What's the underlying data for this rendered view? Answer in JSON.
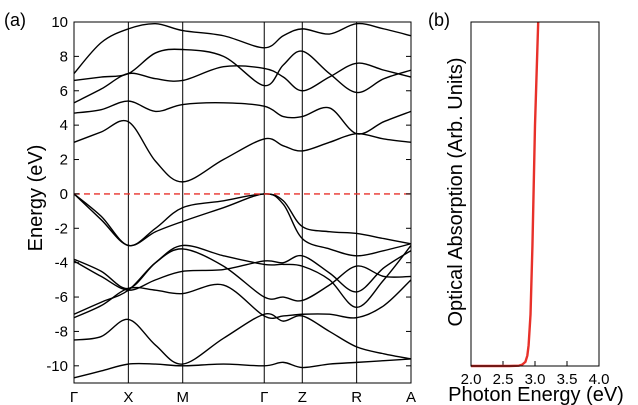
{
  "chart_data": [
    {
      "panel_label": "(a)",
      "type": "line",
      "title": "",
      "xlabel": "",
      "ylabel": "Energy (eV)",
      "ylim": [
        -11,
        10
      ],
      "y_ticks": [
        -10,
        -8,
        -6,
        -4,
        -2,
        0,
        2,
        4,
        6,
        8,
        10
      ],
      "k_points": [
        "Γ",
        "X",
        "M",
        "Γ",
        "Z",
        "R",
        "A"
      ],
      "k_positions": [
        0,
        1,
        2,
        3.5,
        4.2,
        5.2,
        6.2
      ],
      "fermi_level": 0,
      "fermi_color": "#e8312a",
      "band_color": "#000000",
      "series": [
        {
          "x": [
            0,
            0.5,
            1,
            1.5,
            2,
            2.75,
            3.5,
            3.85,
            4.2,
            4.7,
            5.2,
            5.7,
            6.2
          ],
          "y": [
            -10.7,
            -10.3,
            -9.9,
            -9.9,
            -10,
            -9.9,
            -10,
            -9.8,
            -10.1,
            -9.9,
            -9.8,
            -9.7,
            -9.6
          ]
        },
        {
          "x": [
            0,
            0.5,
            1,
            1.5,
            2,
            2.75,
            3.5,
            3.85,
            4.2,
            4.7,
            5.2,
            5.7,
            6.2
          ],
          "y": [
            -8.5,
            -8.3,
            -7.3,
            -8.8,
            -9.9,
            -8.4,
            -7,
            -7.4,
            -7.1,
            -8,
            -8.9,
            -9.3,
            -9.6
          ]
        },
        {
          "x": [
            0,
            0.5,
            1,
            1.5,
            2,
            2.75,
            3.5,
            3.85,
            4.2,
            4.7,
            5.2,
            5.7,
            6.2
          ],
          "y": [
            -7.2,
            -6.5,
            -5.5,
            -5.6,
            -5.8,
            -5.3,
            -7.1,
            -7.1,
            -7,
            -7,
            -7.2,
            -6.5,
            -5
          ]
        },
        {
          "x": [
            0,
            0.5,
            1,
            1.5,
            2,
            2.75,
            3.5,
            3.85,
            4.2,
            4.7,
            5.2,
            5.7,
            6.2
          ],
          "y": [
            -7,
            -6.3,
            -5.6,
            -4,
            -3.2,
            -4.2,
            -6,
            -6,
            -6.2,
            -5.3,
            -4.2,
            -4.8,
            -4.8
          ]
        },
        {
          "x": [
            0,
            0.5,
            1,
            1.5,
            2,
            2.75,
            3.5,
            3.85,
            4.2,
            4.7,
            5.2,
            5.7,
            6.2
          ],
          "y": [
            -3.8,
            -4.5,
            -5.5,
            -4,
            -3,
            -3.6,
            -4.1,
            -4.1,
            -4.2,
            -5,
            -6.6,
            -5,
            -3
          ]
        },
        {
          "x": [
            0,
            0.5,
            1,
            1.5,
            2,
            2.75,
            3.5,
            3.85,
            4.2,
            4.7,
            5.2,
            5.7,
            6.2
          ],
          "y": [
            -3.9,
            -4.8,
            -5.6,
            -5,
            -4.5,
            -4.4,
            -3.9,
            -4,
            -3.6,
            -4.6,
            -5.7,
            -4.3,
            -3.3
          ]
        },
        {
          "x": [
            0,
            0.5,
            1,
            1.5,
            2,
            2.75,
            3.5,
            3.85,
            4.2,
            4.7,
            5.2,
            5.7,
            6.2
          ],
          "y": [
            0,
            -1.3,
            -3,
            -2,
            -0.8,
            -0.4,
            0,
            -0.4,
            -1.9,
            -2.2,
            -2.3,
            -2.6,
            -2.9
          ]
        },
        {
          "x": [
            0,
            0.5,
            1,
            1.5,
            2,
            2.75,
            3.5,
            3.85,
            4.2,
            4.7,
            5.2,
            5.7,
            6.2
          ],
          "y": [
            0,
            -1.5,
            -3,
            -2.2,
            -1.6,
            -0.8,
            0,
            -0.6,
            -2.6,
            -3.2,
            -3.6,
            -3.3,
            -2.9
          ]
        },
        {
          "x": [
            0,
            0.5,
            1,
            1.5,
            2,
            2.75,
            3.5,
            3.85,
            4.2,
            4.7,
            5.2,
            5.7,
            6.2
          ],
          "y": [
            3,
            3.6,
            4.2,
            1.9,
            0.7,
            2,
            3.2,
            2.8,
            2.5,
            3,
            3.5,
            3.2,
            3
          ]
        },
        {
          "x": [
            0,
            0.5,
            1,
            1.5,
            2,
            2.75,
            3.5,
            3.85,
            4.2,
            4.7,
            5.2,
            5.7,
            6.2
          ],
          "y": [
            4.7,
            4.9,
            5.4,
            4.8,
            5.2,
            5.3,
            5.1,
            4.5,
            4.5,
            5,
            3.5,
            4.2,
            4.8
          ]
        },
        {
          "x": [
            0,
            0.5,
            1,
            1.5,
            2,
            2.75,
            3.5,
            3.85,
            4.2,
            4.7,
            5.2,
            5.7,
            6.2
          ],
          "y": [
            5.3,
            6.1,
            7,
            6.7,
            6.6,
            7.4,
            7.3,
            6.8,
            6,
            6.8,
            7.6,
            7.2,
            6.8
          ]
        },
        {
          "x": [
            0,
            0.5,
            1,
            1.5,
            2,
            2.75,
            3.5,
            3.85,
            4.2,
            4.7,
            5.2,
            5.7,
            6.2
          ],
          "y": [
            6.6,
            6.8,
            7,
            8.2,
            8.4,
            8,
            6.3,
            7.5,
            8.3,
            7,
            5.9,
            6.7,
            7.2
          ]
        },
        {
          "x": [
            0,
            0.5,
            1,
            1.5,
            2,
            2.75,
            3.5,
            3.85,
            4.2,
            4.7,
            5.2,
            5.7,
            6.2
          ],
          "y": [
            7,
            8.8,
            9.6,
            9.9,
            9.5,
            9.2,
            8.5,
            9.2,
            9.6,
            9.3,
            9.9,
            9.6,
            9.2
          ]
        }
      ]
    },
    {
      "panel_label": "(b)",
      "type": "line",
      "title": "",
      "xlabel": "Photon Energy (eV)",
      "ylabel": "Optical Absorption (Arb. Units)",
      "xlim": [
        2.0,
        4.0
      ],
      "x_ticks": [
        "2.0",
        "2.5",
        "3.0",
        "3.5",
        "4.0"
      ],
      "ylim": [
        0,
        1
      ],
      "line_color": "#e8312a",
      "series": [
        {
          "x": [
            2.0,
            2.6,
            2.75,
            2.8,
            2.85,
            2.88,
            2.9,
            2.93,
            2.96,
            3.0,
            3.05
          ],
          "y": [
            0,
            0,
            0.001,
            0.004,
            0.012,
            0.03,
            0.06,
            0.15,
            0.35,
            0.7,
            1.0
          ]
        }
      ]
    }
  ]
}
